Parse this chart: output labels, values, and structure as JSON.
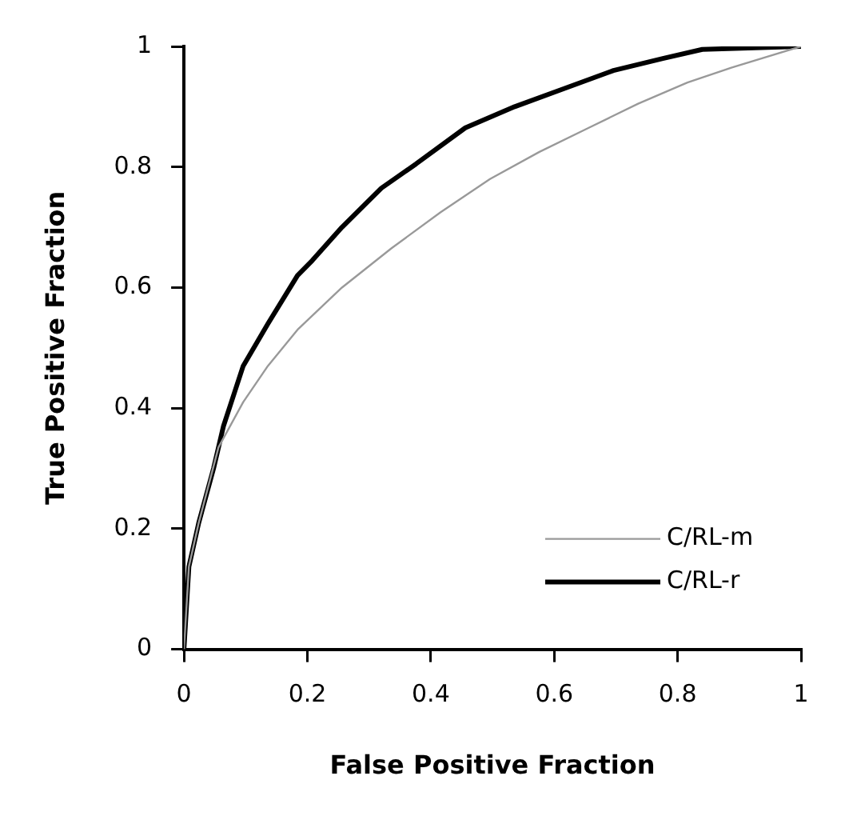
{
  "chart_data": {
    "type": "line",
    "xlabel": "False Positive Fraction",
    "ylabel": "True Positive Fraction",
    "xlim": [
      0,
      1
    ],
    "ylim": [
      0,
      1
    ],
    "xticks": [
      0,
      0.2,
      0.4,
      0.6,
      0.8,
      1
    ],
    "yticks": [
      0,
      0.2,
      0.4,
      0.6,
      0.8,
      1
    ],
    "grid": false,
    "legend": "bottom right",
    "marker": "none",
    "series": [
      {
        "name": "C/RL-m",
        "color": "#999999",
        "x": [
          0,
          0.008,
          0.024,
          0.056,
          0.096,
          0.136,
          0.184,
          0.256,
          0.336,
          0.416,
          0.496,
          0.576,
          0.656,
          0.736,
          0.816,
          0.888,
          1
        ],
        "values": [
          0,
          0.137,
          0.21,
          0.335,
          0.41,
          0.47,
          0.53,
          0.6,
          0.665,
          0.725,
          0.78,
          0.825,
          0.865,
          0.905,
          0.94,
          0.965,
          1
        ]
      },
      {
        "name": "C/RL-r",
        "color": "#000000",
        "x": [
          0,
          0.008,
          0.024,
          0.048,
          0.064,
          0.096,
          0.136,
          0.184,
          0.208,
          0.256,
          0.32,
          0.376,
          0.456,
          0.536,
          0.616,
          0.696,
          0.776,
          0.84,
          1
        ],
        "values": [
          0,
          0.137,
          0.21,
          0.3,
          0.37,
          0.47,
          0.54,
          0.62,
          0.645,
          0.7,
          0.765,
          0.805,
          0.865,
          0.9,
          0.93,
          0.96,
          0.98,
          0.995,
          1
        ]
      }
    ]
  }
}
